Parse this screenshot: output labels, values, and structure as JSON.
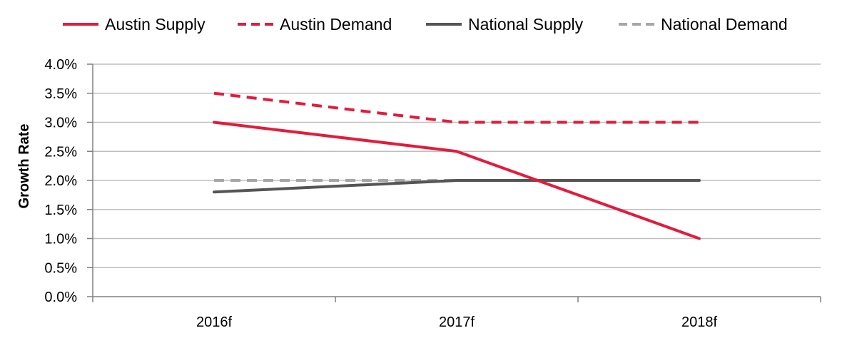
{
  "chart_data": {
    "type": "line",
    "title": "",
    "xlabel": "",
    "ylabel": "Growth Rate",
    "categories": [
      "2016f",
      "2017f",
      "2018f"
    ],
    "ylim": [
      0,
      4
    ],
    "yticks": [
      "0.0%",
      "0.5%",
      "1.0%",
      "1.5%",
      "2.0%",
      "2.5%",
      "3.0%",
      "3.5%",
      "4.0%"
    ],
    "grid": true,
    "legend_position": "top",
    "series": [
      {
        "name": "Austin Supply",
        "values": [
          3.0,
          2.5,
          1.0
        ],
        "color": "#e31b3c",
        "style": "solid"
      },
      {
        "name": "Austin Demand",
        "values": [
          3.5,
          3.0,
          3.0
        ],
        "color": "#e31b3c",
        "style": "dashed"
      },
      {
        "name": "National Supply",
        "values": [
          1.8,
          2.0,
          2.0
        ],
        "color": "#555555",
        "style": "solid"
      },
      {
        "name": "National Demand",
        "values": [
          2.0,
          2.0,
          2.0
        ],
        "color": "#a6a6a6",
        "style": "dashed"
      }
    ]
  }
}
